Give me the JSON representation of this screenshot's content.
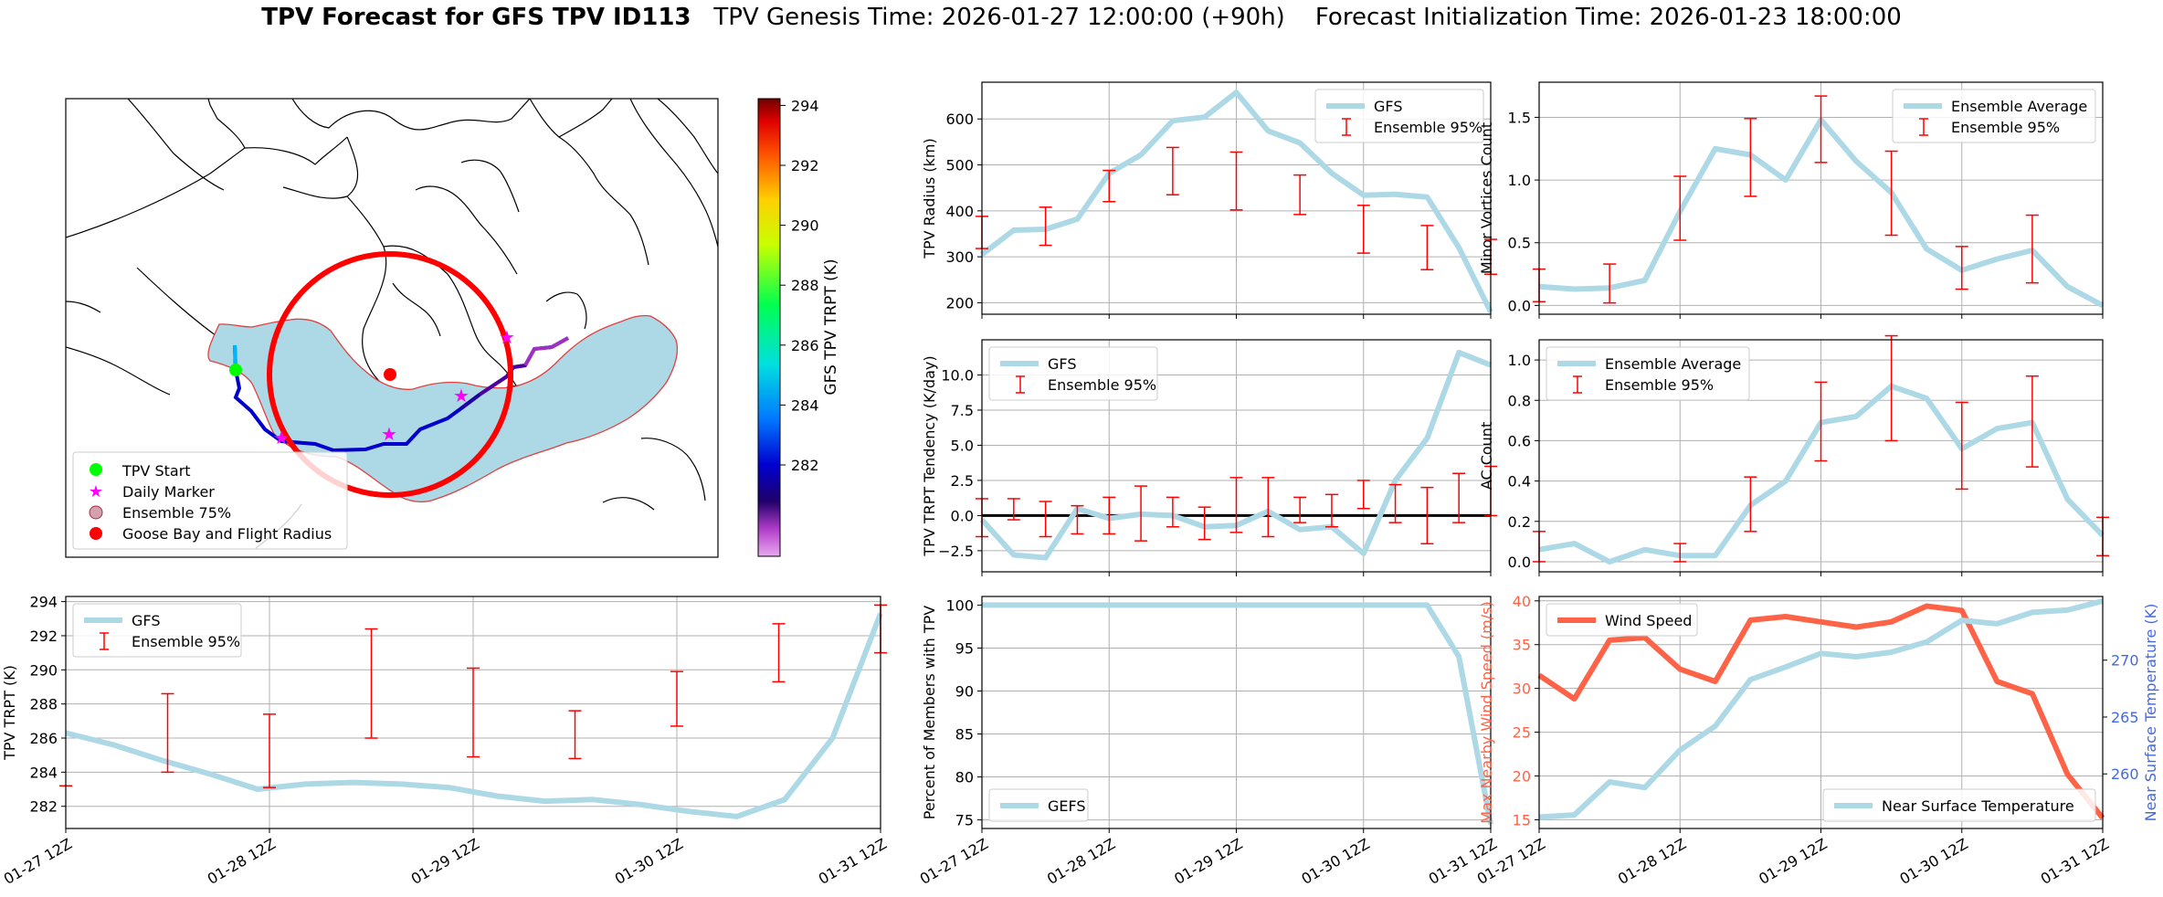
{
  "title": {
    "bold": "TPV Forecast for GFS TPV ID113",
    "genesis": "TPV Genesis Time: 2026-01-27 12:00:00 (+90h)",
    "init": "Forecast Initialization Time: 2026-01-23 18:00:00"
  },
  "colors": {
    "gfs": "#add8e6",
    "ens": "#ff0000",
    "wind": "#ff6347",
    "temp_axis": "#4169e1",
    "grid": "#b0b0b0"
  },
  "map": {
    "legend": [
      "TPV Start",
      "Daily Marker",
      "Ensemble 75%",
      "Goose Bay and Flight Radius"
    ],
    "colorbar_label": "GFS TPV TRPT (K)",
    "colorbar_ticks": [
      "282",
      "284",
      "286",
      "288",
      "290",
      "292",
      "294"
    ]
  },
  "chart_data": [
    {
      "id": "radius",
      "type": "line",
      "ylabel": "TPV Radius (km)",
      "ylim": [
        175,
        680
      ],
      "yticks": [
        200,
        300,
        400,
        500,
        600
      ],
      "legend": [
        "GFS",
        "Ensemble 95%"
      ],
      "legend_loc": "upper-right",
      "line": [
        305,
        358,
        360,
        382,
        482,
        522,
        596,
        604,
        658,
        574,
        548,
        482,
        434,
        436,
        430,
        320,
        180
      ],
      "err": [
        [
          0,
          318,
          388
        ],
        [
          2,
          325,
          408
        ],
        [
          4,
          420,
          488
        ],
        [
          6,
          435,
          538
        ],
        [
          8,
          402,
          528
        ],
        [
          10,
          392,
          478
        ],
        [
          12,
          308,
          412
        ],
        [
          14,
          272,
          368
        ],
        [
          16,
          262,
          338
        ]
      ]
    },
    {
      "id": "minor",
      "type": "line",
      "ylabel": "Minor Vortices Count",
      "ylim": [
        -0.07,
        1.78
      ],
      "yticks": [
        0.0,
        0.5,
        1.0,
        1.5
      ],
      "ytick_labels": [
        "0.0",
        "0.5",
        "1.0",
        "1.5"
      ],
      "legend": [
        "Ensemble Average",
        "Ensemble 95%"
      ],
      "legend_loc": "upper-right",
      "line": [
        0.15,
        0.13,
        0.14,
        0.2,
        0.75,
        1.25,
        1.2,
        1.0,
        1.48,
        1.15,
        0.9,
        0.45,
        0.28,
        0.37,
        0.44,
        0.15,
        0.0
      ],
      "err": [
        [
          0,
          0.03,
          0.29
        ],
        [
          2,
          0.02,
          0.33
        ],
        [
          4,
          0.52,
          1.03
        ],
        [
          6,
          0.87,
          1.49
        ],
        [
          8,
          1.14,
          1.67
        ],
        [
          10,
          0.56,
          1.23
        ],
        [
          12,
          0.13,
          0.47
        ],
        [
          14,
          0.18,
          0.72
        ]
      ]
    },
    {
      "id": "tendency",
      "type": "line",
      "ylabel": "TPV TRPT Tendency (K/day)",
      "ylim": [
        -4.0,
        12.5
      ],
      "yticks": [
        -2.5,
        0.0,
        2.5,
        5.0,
        7.5,
        10.0
      ],
      "ytick_labels": [
        "−2.5",
        "0.0",
        "2.5",
        "5.0",
        "7.5",
        "10.0"
      ],
      "legend": [
        "GFS",
        "Ensemble 95%"
      ],
      "legend_loc": "upper-left",
      "zero_line": true,
      "line": [
        -0.3,
        -2.8,
        -3.0,
        0.5,
        -0.2,
        0.1,
        0.0,
        -0.8,
        -0.7,
        0.3,
        -1.0,
        -0.8,
        -2.7,
        2.5,
        5.5,
        11.6,
        10.7
      ],
      "err": [
        [
          0,
          -1.5,
          1.2
        ],
        [
          1,
          -0.3,
          1.2
        ],
        [
          2,
          -1.5,
          1.0
        ],
        [
          3,
          -1.3,
          0.7
        ],
        [
          4,
          -1.3,
          1.3
        ],
        [
          5,
          -1.8,
          2.1
        ],
        [
          6,
          -0.8,
          1.3
        ],
        [
          7,
          -1.7,
          0.6
        ],
        [
          8,
          -1.2,
          2.7
        ],
        [
          9,
          -1.5,
          2.7
        ],
        [
          10,
          -0.5,
          1.3
        ],
        [
          11,
          -0.8,
          1.5
        ],
        [
          12,
          0.5,
          2.5
        ],
        [
          13,
          -0.5,
          2.2
        ],
        [
          14,
          -2.0,
          2.0
        ],
        [
          15,
          -0.5,
          3.0
        ],
        [
          16,
          0.0,
          3.5
        ]
      ]
    },
    {
      "id": "ac",
      "type": "line",
      "ylabel": "AC Count",
      "ylim": [
        -0.05,
        1.1
      ],
      "yticks": [
        0.0,
        0.2,
        0.4,
        0.6,
        0.8,
        1.0
      ],
      "ytick_labels": [
        "0.0",
        "0.2",
        "0.4",
        "0.6",
        "0.8",
        "1.0"
      ],
      "legend": [
        "Ensemble Average",
        "Ensemble 95%"
      ],
      "legend_loc": "upper-left",
      "line": [
        0.06,
        0.09,
        0.0,
        0.06,
        0.03,
        0.03,
        0.28,
        0.4,
        0.69,
        0.72,
        0.87,
        0.81,
        0.56,
        0.66,
        0.69,
        0.31,
        0.13
      ],
      "err": [
        [
          0,
          0.0,
          0.15
        ],
        [
          4,
          0.0,
          0.09
        ],
        [
          6,
          0.15,
          0.42
        ],
        [
          8,
          0.5,
          0.89
        ],
        [
          10,
          0.6,
          1.12
        ],
        [
          12,
          0.36,
          0.79
        ],
        [
          14,
          0.47,
          0.92
        ],
        [
          16,
          0.03,
          0.22
        ]
      ]
    },
    {
      "id": "trpt",
      "type": "line",
      "ylabel": "TPV TRPT (K)",
      "ylim": [
        280.7,
        294.3
      ],
      "yticks": [
        282,
        284,
        286,
        288,
        290,
        292,
        294
      ],
      "legend": [
        "GFS",
        "Ensemble 95%"
      ],
      "legend_loc": "upper-left",
      "line": [
        286.3,
        285.6,
        284.7,
        283.9,
        283.0,
        283.3,
        283.4,
        283.3,
        283.1,
        282.6,
        282.3,
        282.4,
        282.1,
        281.7,
        281.4,
        282.4,
        286.0,
        293.3
      ],
      "err": [
        [
          0,
          283.2,
          283.2
        ],
        [
          2,
          284.0,
          288.6
        ],
        [
          4,
          283.1,
          287.4
        ],
        [
          6,
          286.0,
          292.4
        ],
        [
          8,
          284.9,
          290.1
        ],
        [
          10,
          284.8,
          287.6
        ],
        [
          12,
          286.7,
          289.9
        ],
        [
          14,
          289.3,
          292.7
        ],
        [
          16,
          291.0,
          293.8
        ]
      ]
    },
    {
      "id": "percent",
      "type": "line",
      "ylabel": "Percent of Members with TPV",
      "ylim": [
        74.0,
        101.0
      ],
      "yticks": [
        75,
        80,
        85,
        90,
        95,
        100
      ],
      "legend": [
        "GEFS"
      ],
      "legend_loc": "lower-left",
      "line": [
        100,
        100,
        100,
        100,
        100,
        100,
        100,
        100,
        100,
        100,
        100,
        100,
        100,
        100,
        100,
        94,
        74.5
      ]
    },
    {
      "id": "wind",
      "type": "line",
      "ylabel": "Max Nearby Wind Speed (m/s)",
      "ylim": [
        14.0,
        40.5
      ],
      "yticks": [
        15,
        20,
        25,
        30,
        35,
        40
      ],
      "legend": [
        "Wind Speed"
      ],
      "legend_loc": "upper-left",
      "line": [
        31.5,
        28.8,
        35.5,
        35.8,
        32.2,
        30.8,
        37.8,
        38.2,
        37.6,
        37.0,
        37.6,
        39.4,
        38.9,
        30.8,
        29.4,
        20.2,
        15.2
      ],
      "y2label": "Near Surface Temperature (K)",
      "y2lim": [
        255.2,
        275.6
      ],
      "y2ticks": [
        260,
        265,
        270
      ],
      "legend2": [
        "Near Surface Temperature"
      ],
      "legend2_loc": "lower-right",
      "line2": [
        256.2,
        256.4,
        259.3,
        258.8,
        262.1,
        264.2,
        268.3,
        269.4,
        270.6,
        270.3,
        270.7,
        271.6,
        273.5,
        273.2,
        274.2,
        274.4,
        275.2
      ]
    }
  ],
  "xticks": [
    "01-27 12Z",
    "01-28 12Z",
    "01-29 12Z",
    "01-30 12Z",
    "01-31 12Z"
  ]
}
